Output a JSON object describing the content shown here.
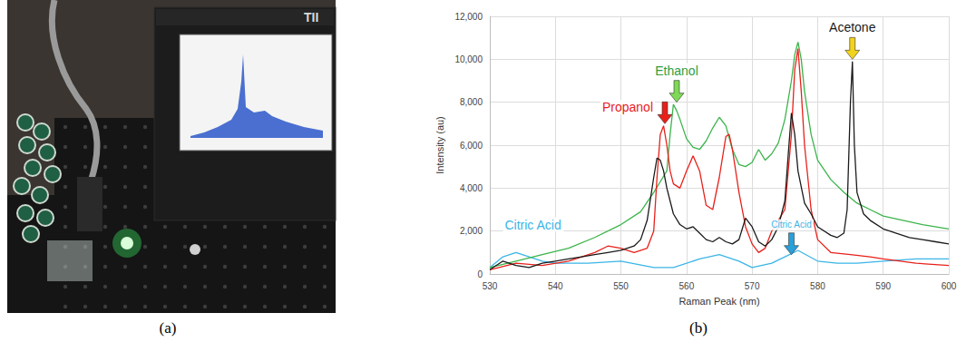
{
  "panel_labels": [
    "(a)",
    "(b)"
  ],
  "photo": {
    "device_logo": "TII"
  },
  "chart_data": {
    "type": "line",
    "x_label": "Raman Peak (nm)",
    "y_label": "Intensity (au)",
    "xlim": [
      530,
      600
    ],
    "xticks": [
      530,
      540,
      550,
      560,
      570,
      580,
      590,
      600
    ],
    "ylim": [
      0,
      12000
    ],
    "yticks": [
      0,
      {
        "value": 2000,
        "label": "2,000"
      },
      {
        "value": 4000,
        "label": "4,000"
      },
      {
        "value": 6000,
        "label": "6,000"
      },
      {
        "value": 8000,
        "label": "8,000"
      },
      {
        "value": 10000,
        "label": "10,000"
      },
      {
        "value": 12000,
        "label": "12,000"
      }
    ],
    "grid": true,
    "series": [
      {
        "name": "Citric Acid",
        "color": "#3bb5e6",
        "x": [
          530,
          532,
          534,
          536,
          538,
          540,
          545,
          550,
          555,
          558,
          562,
          565,
          568,
          570,
          573,
          575,
          577,
          580,
          583,
          586,
          590,
          595,
          600
        ],
        "values": [
          300,
          800,
          1000,
          800,
          600,
          500,
          500,
          600,
          300,
          300,
          700,
          900,
          600,
          300,
          500,
          800,
          1100,
          600,
          500,
          500,
          600,
          700,
          700
        ]
      },
      {
        "name": "Ethanol",
        "color": "#3cb44b",
        "x": [
          530,
          534,
          538,
          542,
          546,
          550,
          553,
          555,
          556,
          557,
          557.5,
          558,
          558.5,
          559,
          560,
          561,
          562,
          563,
          564,
          565,
          566,
          567,
          568,
          569,
          570,
          571,
          572,
          573,
          574,
          575,
          576,
          576.5,
          577,
          577.5,
          578,
          579,
          580,
          582,
          584,
          586,
          588,
          590,
          593,
          596,
          600
        ],
        "values": [
          300,
          600,
          900,
          1200,
          1700,
          2300,
          2900,
          3800,
          4300,
          4800,
          6500,
          7900,
          7600,
          7200,
          6300,
          5900,
          5800,
          6200,
          6800,
          7300,
          6900,
          5800,
          5100,
          5000,
          5200,
          5800,
          5300,
          5600,
          6100,
          7200,
          9000,
          10200,
          10800,
          10000,
          8500,
          6500,
          5300,
          4400,
          3800,
          3300,
          3000,
          2700,
          2500,
          2300,
          2100
        ]
      },
      {
        "name": "Propanol",
        "color": "#e8201a",
        "x": [
          530,
          534,
          538,
          542,
          546,
          548,
          550,
          552,
          554,
          555,
          555.5,
          556,
          556.5,
          557,
          557.5,
          558,
          559,
          560,
          561,
          562,
          563,
          564,
          565,
          566,
          566.5,
          567,
          568,
          569,
          570,
          571,
          572,
          573,
          574,
          575,
          576,
          576.5,
          577,
          577.5,
          578,
          579,
          580,
          582,
          585,
          588,
          590,
          595,
          600
        ],
        "values": [
          200,
          500,
          400,
          600,
          1000,
          1300,
          1200,
          1000,
          1200,
          2000,
          4500,
          6500,
          6900,
          6000,
          4800,
          4200,
          4000,
          4800,
          5500,
          4800,
          3200,
          3000,
          4500,
          6400,
          6500,
          5800,
          3800,
          2200,
          1400,
          1000,
          1200,
          2000,
          2500,
          3000,
          6500,
          9500,
          10500,
          8500,
          6000,
          3000,
          1600,
          1000,
          900,
          800,
          700,
          500,
          400
        ]
      },
      {
        "name": "Acetone",
        "color": "#1a1a1a",
        "x": [
          530,
          532,
          534,
          536,
          538,
          540,
          542,
          544,
          546,
          548,
          550,
          552,
          553,
          554,
          555,
          555.5,
          556,
          556.5,
          557,
          558,
          559,
          560,
          561,
          562,
          563,
          564,
          565,
          566,
          567,
          568,
          569,
          570,
          571,
          572,
          573,
          574,
          575,
          575.5,
          576,
          576.5,
          577,
          578,
          579,
          580,
          582,
          583,
          584,
          584.5,
          585,
          585.3,
          585.6,
          586,
          587,
          588,
          590,
          592,
          594,
          596,
          598,
          600
        ],
        "values": [
          200,
          600,
          400,
          300,
          500,
          600,
          700,
          800,
          900,
          1000,
          1100,
          1300,
          1600,
          2500,
          4500,
          5400,
          5300,
          4800,
          4000,
          2800,
          2300,
          2100,
          2200,
          1900,
          1600,
          1500,
          1700,
          1500,
          1400,
          1600,
          2600,
          2200,
          1500,
          1300,
          1600,
          2200,
          3400,
          5500,
          7500,
          6500,
          4800,
          3300,
          2800,
          2200,
          1800,
          1700,
          1900,
          3000,
          8000,
          9900,
          6000,
          3800,
          2800,
          2500,
          2100,
          1900,
          1700,
          1600,
          1500,
          1400
        ]
      }
    ],
    "annotations": [
      {
        "text": "Propanol",
        "x": 556.7,
        "y": 7000,
        "color": "#e8201a",
        "arrow_color": "#e8201a"
      },
      {
        "text": "Ethanol",
        "x": 558.5,
        "y": 8000,
        "color": "#2e9e3e",
        "arrow_color": "#7ed957"
      },
      {
        "text": "Acetone",
        "x": 585.3,
        "y": 10000,
        "color": "#1a1a1a",
        "arrow_color": "#f2d21b"
      },
      {
        "text": "Citric Acid",
        "x": 532,
        "y": 2300,
        "color": "#3bb5e6"
      },
      {
        "text": "Citric Acid",
        "x": 576,
        "y": 900,
        "color": "#3bb5e6",
        "arrow_color": "#2a9fd8"
      }
    ]
  }
}
